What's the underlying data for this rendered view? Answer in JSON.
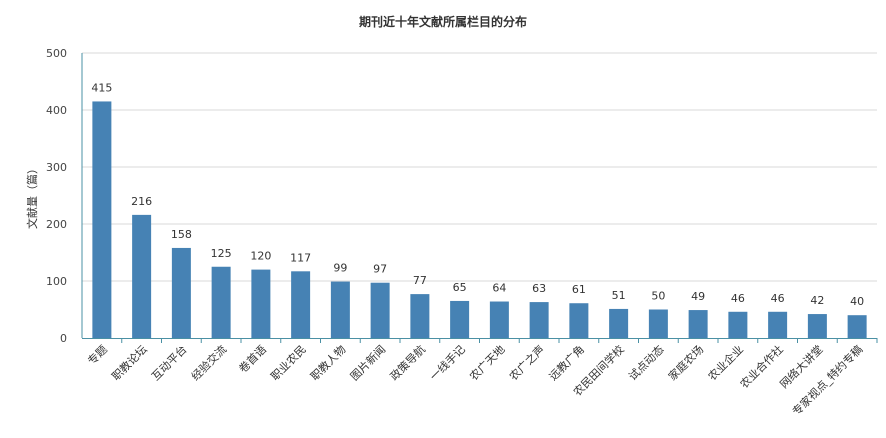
{
  "chart_data": {
    "type": "bar",
    "title": "期刊近十年文献所属栏目的分布",
    "xlabel": "",
    "ylabel": "文献量（篇）",
    "ylim": [
      0,
      500
    ],
    "yticks": [
      0,
      100,
      200,
      300,
      400,
      500
    ],
    "grid": true,
    "bar_color": "#4682b4",
    "categories": [
      "专题",
      "职教论坛",
      "互动平台",
      "经验交流",
      "卷首语",
      "职业农民",
      "职教人物",
      "图片新闻",
      "政策导航",
      "一线手记",
      "农广天地",
      "农广之声",
      "远教广角",
      "农民田间学校",
      "试点动态",
      "家庭农场",
      "农业企业",
      "农业合作社",
      "网络大讲堂",
      "专家视点_特约专稿"
    ],
    "values": [
      415,
      216,
      158,
      125,
      120,
      117,
      99,
      97,
      77,
      65,
      64,
      63,
      61,
      51,
      50,
      49,
      46,
      46,
      42,
      40
    ]
  }
}
